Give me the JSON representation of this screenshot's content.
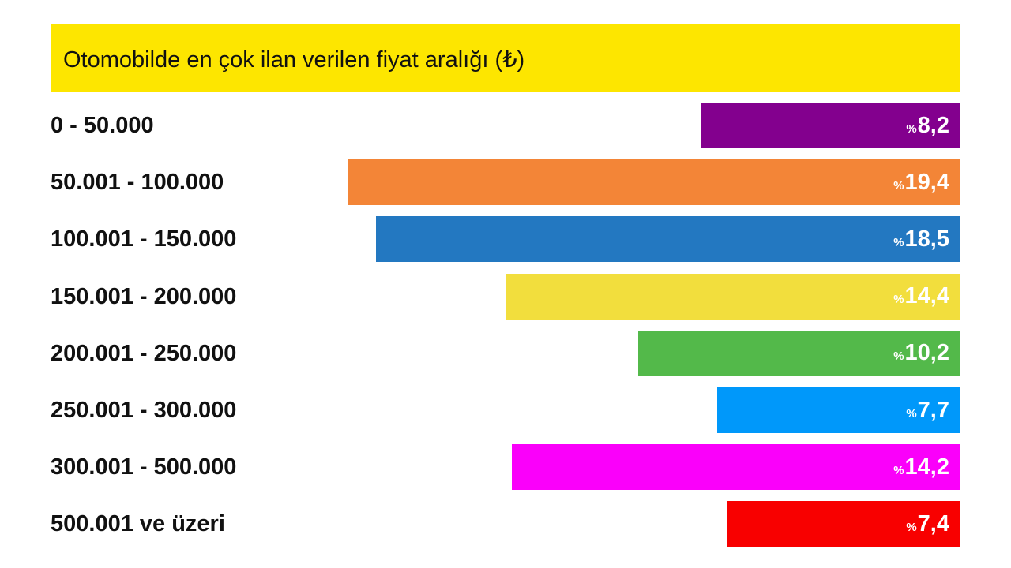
{
  "chart_data": {
    "type": "bar",
    "orientation": "horizontal",
    "title": "Otomobilde en çok ilan verilen fiyat aralığı (₺)",
    "percent_symbol": "%",
    "categories": [
      "0 - 50.000",
      "50.001 - 100.000",
      "100.001 - 150.000",
      "150.001 - 200.000",
      "200.001 - 250.000",
      "250.001 - 300.000",
      "300.001 - 500.000",
      "500.001 ve üzeri"
    ],
    "values": [
      8.2,
      19.4,
      18.5,
      14.4,
      10.2,
      7.7,
      14.2,
      7.4
    ],
    "value_labels": [
      "8,2",
      "19,4",
      "18,5",
      "14,4",
      "10,2",
      "7,7",
      "14,2",
      "7,4"
    ],
    "colors": [
      "#83008e",
      "#f38537",
      "#2378c1",
      "#f2de3d",
      "#53b94a",
      "#0098fa",
      "#fa00fa",
      "#f80000"
    ],
    "title_bar_color": "#fde600",
    "bar_alignment": "right"
  }
}
